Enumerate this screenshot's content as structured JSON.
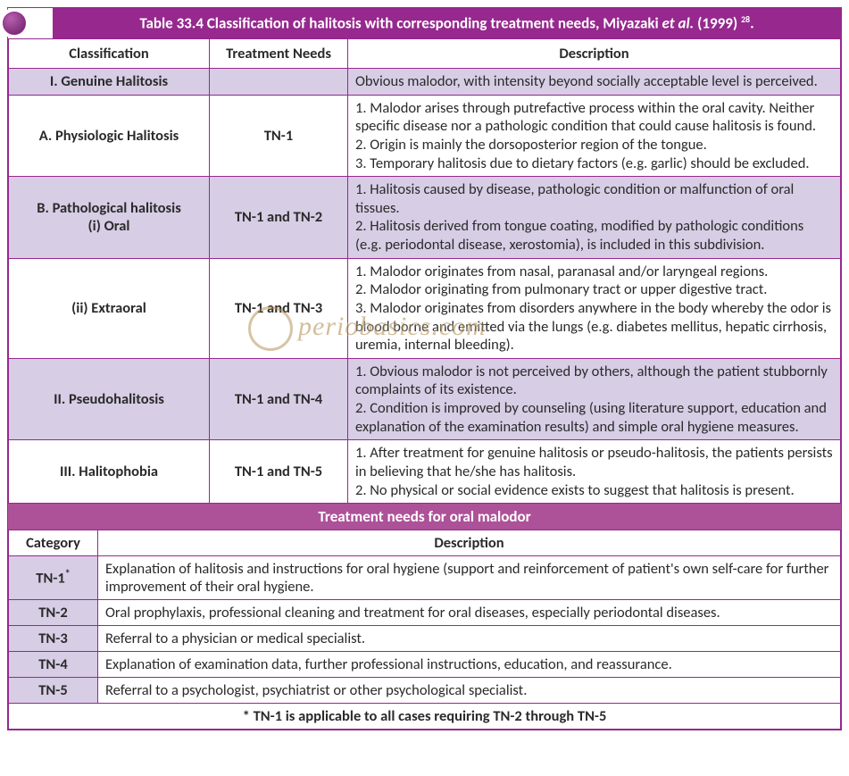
{
  "title": {
    "prefix": "Table 33.4 Classification of halitosis with corresponding treatment needs, Miyazaki ",
    "em": "et al.",
    "suffix": "  (1999)",
    "sup": "28",
    "dot": "."
  },
  "headers": {
    "c1": "Classification",
    "c2": "Treatment Needs",
    "c3": "Description"
  },
  "rows": [
    {
      "shade": true,
      "cls": "I. Genuine Halitosis",
      "tn": "",
      "desc": "Obvious malodor, with intensity beyond socially acceptable level is perceived."
    },
    {
      "shade": false,
      "cls": "A. Physiologic Halitosis",
      "tn": "TN-1",
      "desc": "1. Malodor arises through putrefactive process within the oral cavity. Neither specific disease nor a pathologic condition that could cause halitosis is found.\n2. Origin is mainly the dorsoposterior region of the tongue.\n3. Temporary halitosis due to dietary factors (e.g. garlic) should be excluded."
    },
    {
      "shade": true,
      "cls": "B. Pathological halitosis\n(i) Oral",
      "tn": "TN-1 and TN-2",
      "desc": "1. Halitosis caused by disease, pathologic condition or malfunction of oral tissues.\n2. Halitosis derived from tongue coating, modified by pathologic conditions (e.g. periodontal disease, xerostomia), is included in this subdivision."
    },
    {
      "shade": false,
      "cls": "(ii) Extraoral",
      "tn": "TN-1 and TN-3",
      "desc": "1. Malodor originates from nasal, paranasal and/or laryngeal regions.\n2. Malodor originating from pulmonary tract or upper digestive tract.\n3. Malodor originates from disorders anywhere in the body whereby the odor is blood borne and emitted via the lungs (e.g. diabetes mellitus, hepatic cirrhosis, uremia, internal bleeding)."
    },
    {
      "shade": true,
      "cls": "II. Pseudohalitosis",
      "tn": "TN-1 and TN-4",
      "desc": "1. Obvious malodor is not perceived by others, although the patient stubbornly complaints of its existence.\n2. Condition is improved by counseling (using literature support, education and explanation of the examination results) and simple oral hygiene measures."
    },
    {
      "shade": false,
      "cls": "III. Halitophobia",
      "tn": "TN-1 and TN-5",
      "desc": "1. After treatment for genuine halitosis or pseudo-halitosis, the patients persists in believing that he/she has halitosis.\n2. No physical or social evidence exists to suggest that halitosis is present."
    }
  ],
  "subheader": "Treatment needs for oral malodor",
  "t2headers": {
    "c1": "Category",
    "c2": "Description"
  },
  "needs": [
    {
      "cat": "TN-1",
      "ast": "*",
      "desc": "Explanation of halitosis and instructions for oral hygiene (support and reinforcement of patient's own self-care for further improvement of their oral hygiene."
    },
    {
      "cat": "TN-2",
      "ast": "",
      "desc": "Oral prophylaxis, professional cleaning and treatment for oral diseases, especially periodontal diseases."
    },
    {
      "cat": "TN-3",
      "ast": "",
      "desc": "Referral to a physician or medical specialist."
    },
    {
      "cat": "TN-4",
      "ast": "",
      "desc": "Explanation of examination data, further professional instructions, education, and reassurance."
    },
    {
      "cat": "TN-5",
      "ast": "",
      "desc": "Referral to a psychologist, psychiatrist or other psychological specialist."
    }
  ],
  "footnote": "* TN-1 is applicable to all cases requiring TN-2 through TN-5",
  "watermark": "periobasics.com",
  "colors": {
    "primary": "#96288e",
    "secondary": "#ad5198",
    "shade": "#d7cde5",
    "text": "#2a2a2a"
  }
}
